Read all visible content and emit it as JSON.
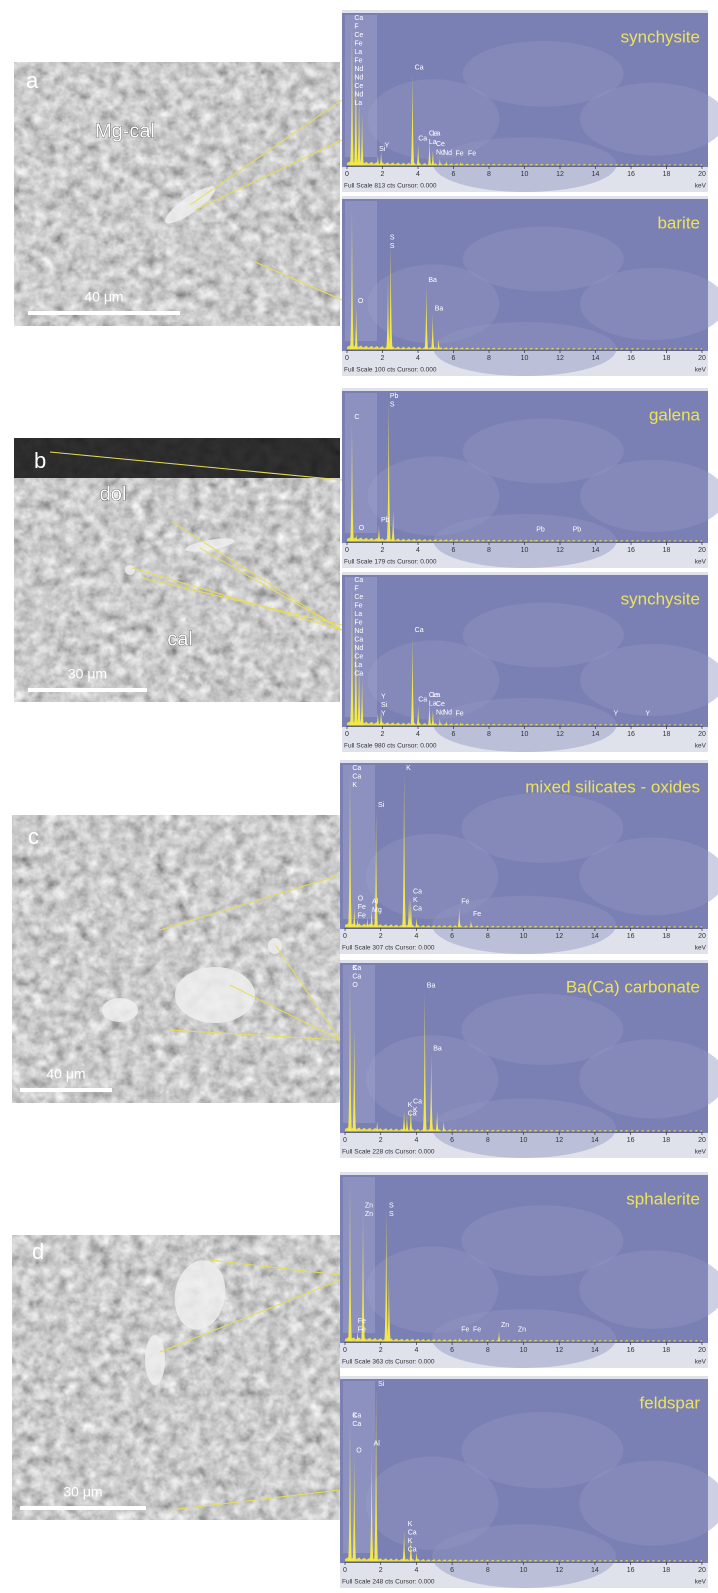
{
  "x_axis": {
    "unit": "keV",
    "ticks": [
      0,
      2,
      4,
      6,
      8,
      10,
      12,
      14,
      16,
      18,
      20
    ]
  },
  "panels": [
    {
      "letter": "a",
      "image_labels": [
        "Mg-cal"
      ],
      "scale_bar": "40 μm",
      "spectra": [
        {
          "mineral": "synchysite",
          "footer": "Full Scale 813 cts Cursor: 0.000",
          "peaks": [
            {
              "keV": 0.28,
              "cts": 813
            },
            {
              "keV": 0.5,
              "cts": 650
            },
            {
              "keV": 0.68,
              "cts": 400
            },
            {
              "keV": 0.85,
              "cts": 300
            },
            {
              "keV": 1.74,
              "cts": 60
            },
            {
              "keV": 1.92,
              "cts": 80
            },
            {
              "keV": 3.69,
              "cts": 520
            },
            {
              "keV": 4.01,
              "cts": 120
            },
            {
              "keV": 4.65,
              "cts": 150
            },
            {
              "keV": 4.84,
              "cts": 90
            },
            {
              "keV": 5.23,
              "cts": 40
            },
            {
              "keV": 5.6,
              "cts": 30
            },
            {
              "keV": 6.4,
              "cts": 25
            }
          ],
          "labels": [
            {
              "keV": 0.3,
              "lines": [
                "Ca",
                "F",
                "Ce",
                "Fe",
                "La",
                "Fe",
                "Nd",
                "Nd",
                "Ce",
                "Nd",
                "La"
              ]
            },
            {
              "keV": 1.7,
              "lines": [
                "Si"
              ]
            },
            {
              "keV": 2.0,
              "lines": [
                "Y"
              ]
            },
            {
              "keV": 3.7,
              "lines": [
                "Ca"
              ]
            },
            {
              "keV": 3.9,
              "lines": [
                "Ca"
              ]
            },
            {
              "keV": 4.5,
              "lines": [
                "Ce",
                "La"
              ]
            },
            {
              "keV": 4.9,
              "lines": [
                "Ce",
                "Nd"
              ]
            },
            {
              "keV": 4.7,
              "lines": [
                "La"
              ]
            },
            {
              "keV": 5.3,
              "lines": [
                "Nd"
              ]
            },
            {
              "keV": 6.0,
              "lines": [
                "Fe"
              ]
            },
            {
              "keV": 6.7,
              "lines": [
                "Fe"
              ]
            }
          ]
        },
        {
          "mineral": "barite",
          "footer": "Full Scale 100 cts Cursor: 0.000",
          "peaks": [
            {
              "keV": 0.28,
              "cts": 100
            },
            {
              "keV": 0.52,
              "cts": 30
            },
            {
              "keV": 2.31,
              "cts": 50
            },
            {
              "keV": 2.46,
              "cts": 75
            },
            {
              "keV": 4.47,
              "cts": 45
            },
            {
              "keV": 4.83,
              "cts": 25
            },
            {
              "keV": 5.16,
              "cts": 8
            }
          ],
          "labels": [
            {
              "keV": 0.5,
              "lines": [
                "O"
              ]
            },
            {
              "keV": 2.3,
              "lines": [
                "S",
                "S"
              ]
            },
            {
              "keV": 4.47,
              "lines": [
                "Ba"
              ]
            },
            {
              "keV": 4.83,
              "lines": [
                "Ba"
              ]
            }
          ]
        }
      ]
    },
    {
      "letter": "b",
      "image_labels": [
        "dol",
        "cal"
      ],
      "scale_bar": "30 μm",
      "spectra": [
        {
          "mineral": "galena",
          "footer": "Full Scale 179 cts Cursor: 0.000",
          "peaks": [
            {
              "keV": 0.28,
              "cts": 150
            },
            {
              "keV": 0.52,
              "cts": 10
            },
            {
              "keV": 1.8,
              "cts": 20
            },
            {
              "keV": 2.35,
              "cts": 179
            },
            {
              "keV": 2.6,
              "cts": 40
            },
            {
              "keV": 10.55,
              "cts": 3
            },
            {
              "keV": 12.6,
              "cts": 2
            }
          ],
          "labels": [
            {
              "keV": 0.3,
              "lines": [
                "C"
              ]
            },
            {
              "keV": 0.55,
              "lines": [
                "O"
              ]
            },
            {
              "keV": 1.8,
              "lines": [
                "Pb"
              ]
            },
            {
              "keV": 2.3,
              "lines": [
                "Pb",
                "S"
              ]
            },
            {
              "keV": 10.55,
              "lines": [
                "Pb"
              ]
            },
            {
              "keV": 12.6,
              "lines": [
                "Pb"
              ]
            }
          ]
        },
        {
          "mineral": "synchysite",
          "footer": "Full Scale 980 cts Cursor: 0.000",
          "peaks": [
            {
              "keV": 0.28,
              "cts": 980
            },
            {
              "keV": 0.5,
              "cts": 780
            },
            {
              "keV": 0.68,
              "cts": 450
            },
            {
              "keV": 0.85,
              "cts": 330
            },
            {
              "keV": 1.74,
              "cts": 90
            },
            {
              "keV": 1.92,
              "cts": 110
            },
            {
              "keV": 3.69,
              "cts": 620
            },
            {
              "keV": 4.01,
              "cts": 140
            },
            {
              "keV": 4.65,
              "cts": 170
            },
            {
              "keV": 4.84,
              "cts": 110
            },
            {
              "keV": 5.23,
              "cts": 50
            },
            {
              "keV": 5.6,
              "cts": 35
            },
            {
              "keV": 6.4,
              "cts": 25
            },
            {
              "keV": 14.9,
              "cts": 8
            },
            {
              "keV": 16.7,
              "cts": 5
            }
          ],
          "labels": [
            {
              "keV": 0.3,
              "lines": [
                "Ca",
                "F",
                "Ce",
                "Fe",
                "La",
                "Fe",
                "Nd",
                "Ca",
                "Nd",
                "Ce",
                "La",
                "Ca"
              ]
            },
            {
              "keV": 1.8,
              "lines": [
                "Y",
                "Si",
                "Y"
              ]
            },
            {
              "keV": 3.7,
              "lines": [
                "Ca"
              ]
            },
            {
              "keV": 3.9,
              "lines": [
                "Ca"
              ]
            },
            {
              "keV": 4.5,
              "lines": [
                "Ce",
                "La"
              ]
            },
            {
              "keV": 4.9,
              "lines": [
                "Ce",
                "Nd"
              ]
            },
            {
              "keV": 4.7,
              "lines": [
                "La"
              ]
            },
            {
              "keV": 5.3,
              "lines": [
                "Nd"
              ]
            },
            {
              "keV": 6.0,
              "lines": [
                "Fe"
              ]
            },
            {
              "keV": 14.9,
              "lines": [
                "Y"
              ]
            },
            {
              "keV": 16.7,
              "lines": [
                "Y"
              ]
            }
          ]
        }
      ]
    },
    {
      "letter": "c",
      "image_labels": [],
      "scale_bar": "40 μm",
      "spectra": [
        {
          "mineral": "mixed silicates - oxides",
          "footer": "Full Scale 307 cts Cursor: 0.000",
          "peaks": [
            {
              "keV": 0.28,
              "cts": 307
            },
            {
              "keV": 0.52,
              "cts": 40
            },
            {
              "keV": 0.7,
              "cts": 20
            },
            {
              "keV": 1.25,
              "cts": 20
            },
            {
              "keV": 1.49,
              "cts": 40
            },
            {
              "keV": 1.74,
              "cts": 230
            },
            {
              "keV": 3.31,
              "cts": 307
            },
            {
              "keV": 3.59,
              "cts": 60
            },
            {
              "keV": 3.69,
              "cts": 60
            },
            {
              "keV": 4.01,
              "cts": 20
            },
            {
              "keV": 6.4,
              "cts": 40
            },
            {
              "keV": 7.06,
              "cts": 15
            }
          ],
          "labels": [
            {
              "keV": 0.3,
              "lines": [
                "Ca",
                "Ca",
                "K"
              ]
            },
            {
              "keV": 0.6,
              "lines": [
                "O",
                "Fe",
                "Fe"
              ]
            },
            {
              "keV": 1.4,
              "lines": [
                "Al",
                "Mg"
              ]
            },
            {
              "keV": 1.74,
              "lines": [
                "Si"
              ]
            },
            {
              "keV": 3.31,
              "lines": [
                "K"
              ]
            },
            {
              "keV": 3.7,
              "lines": [
                "Ca",
                "K",
                "Ca"
              ]
            },
            {
              "keV": 6.4,
              "lines": [
                "Fe"
              ]
            },
            {
              "keV": 7.06,
              "lines": [
                "Fe"
              ]
            }
          ]
        },
        {
          "mineral": "Ba(Ca) carbonate",
          "footer": "Full Scale 228 cts Cursor: 0.000",
          "peaks": [
            {
              "keV": 0.28,
              "cts": 228
            },
            {
              "keV": 0.52,
              "cts": 150
            },
            {
              "keV": 1.8,
              "cts": 15
            },
            {
              "keV": 3.31,
              "cts": 30
            },
            {
              "keV": 3.47,
              "cts": 25
            },
            {
              "keV": 3.69,
              "cts": 35
            },
            {
              "keV": 4.47,
              "cts": 200
            },
            {
              "keV": 4.83,
              "cts": 110
            },
            {
              "keV": 5.16,
              "cts": 30
            },
            {
              "keV": 5.53,
              "cts": 15
            }
          ],
          "labels": [
            {
              "keV": 0.3,
              "lines": [
                "Ca",
                "Ca",
                "O"
              ]
            },
            {
              "keV": 0.3,
              "lines": [
                "K"
              ]
            },
            {
              "keV": 4.47,
              "lines": [
                "Ba"
              ]
            },
            {
              "keV": 4.83,
              "lines": [
                "Ba"
              ]
            },
            {
              "keV": 3.4,
              "lines": [
                "K",
                "Ca"
              ]
            },
            {
              "keV": 3.7,
              "lines": [
                "Ca",
                "K"
              ]
            }
          ]
        }
      ]
    },
    {
      "letter": "d",
      "image_labels": [],
      "scale_bar": "30 μm",
      "spectra": [
        {
          "mineral": "sphalerite",
          "footer": "Full Scale 363 cts Cursor: 0.000",
          "peaks": [
            {
              "keV": 0.28,
              "cts": 363
            },
            {
              "keV": 0.7,
              "cts": 25
            },
            {
              "keV": 1.01,
              "cts": 300
            },
            {
              "keV": 2.31,
              "cts": 300
            },
            {
              "keV": 2.46,
              "cts": 150
            },
            {
              "keV": 6.4,
              "cts": 10
            },
            {
              "keV": 7.06,
              "cts": 8
            },
            {
              "keV": 8.63,
              "cts": 25
            },
            {
              "keV": 9.57,
              "cts": 5
            }
          ],
          "labels": [
            {
              "keV": 1.0,
              "lines": [
                "Zn",
                "Zn"
              ]
            },
            {
              "keV": 0.6,
              "lines": [
                "Fe",
                "Fe"
              ]
            },
            {
              "keV": 2.35,
              "lines": [
                "S",
                "S"
              ]
            },
            {
              "keV": 6.4,
              "lines": [
                "Fe"
              ]
            },
            {
              "keV": 7.06,
              "lines": [
                "Fe"
              ]
            },
            {
              "keV": 8.63,
              "lines": [
                "Zn"
              ]
            },
            {
              "keV": 9.57,
              "lines": [
                "Zn"
              ]
            }
          ]
        },
        {
          "mineral": "feldspar",
          "footer": "Full Scale 248 cts Cursor: 0.000",
          "peaks": [
            {
              "keV": 0.28,
              "cts": 200
            },
            {
              "keV": 0.52,
              "cts": 150
            },
            {
              "keV": 1.49,
              "cts": 160
            },
            {
              "keV": 1.74,
              "cts": 248
            },
            {
              "keV": 3.31,
              "cts": 45
            },
            {
              "keV": 3.69,
              "cts": 35
            },
            {
              "keV": 4.01,
              "cts": 15
            }
          ],
          "labels": [
            {
              "keV": 0.3,
              "lines": [
                "Ca",
                "Ca"
              ]
            },
            {
              "keV": 0.52,
              "lines": [
                "O"
              ]
            },
            {
              "keV": 0.3,
              "lines": [
                "K"
              ]
            },
            {
              "keV": 1.49,
              "lines": [
                "Al"
              ]
            },
            {
              "keV": 1.74,
              "lines": [
                "Si"
              ]
            },
            {
              "keV": 3.4,
              "lines": [
                "K",
                "Ca",
                "K",
                "Ca"
              ]
            }
          ]
        }
      ]
    }
  ]
}
